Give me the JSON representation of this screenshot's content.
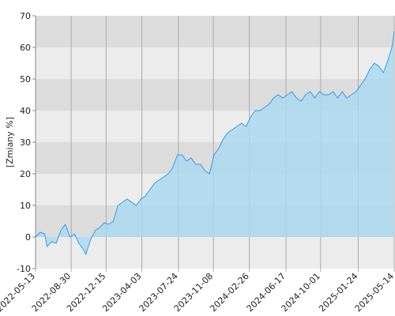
{
  "chart_data": {
    "type": "area",
    "y_label": "[Zmiany %]",
    "color": "#3399ee",
    "fill_color": "#a8d8f0",
    "x": [
      "2022-05-13",
      "2022-05-27",
      "2022-06-10",
      "2022-06-17",
      "2022-07-01",
      "2022-07-15",
      "2022-07-29",
      "2022-08-12",
      "2022-08-26",
      "2022-09-09",
      "2022-09-23",
      "2022-10-07",
      "2022-10-14",
      "2022-10-28",
      "2022-11-11",
      "2022-11-25",
      "2022-12-09",
      "2022-12-23",
      "2023-01-06",
      "2023-01-20",
      "2023-02-03",
      "2023-02-17",
      "2023-03-03",
      "2023-03-17",
      "2023-03-31",
      "2023-04-14",
      "2023-04-28",
      "2023-05-12",
      "2023-05-26",
      "2023-06-09",
      "2023-06-23",
      "2023-07-07",
      "2023-07-21",
      "2023-08-04",
      "2023-08-18",
      "2023-09-01",
      "2023-09-15",
      "2023-09-29",
      "2023-10-13",
      "2023-10-27",
      "2023-11-10",
      "2023-11-24",
      "2023-12-08",
      "2023-12-22",
      "2024-01-05",
      "2024-01-19",
      "2024-02-02",
      "2024-02-16",
      "2024-03-01",
      "2024-03-15",
      "2024-03-29",
      "2024-04-12",
      "2024-04-26",
      "2024-05-10",
      "2024-05-24",
      "2024-06-07",
      "2024-06-21",
      "2024-07-05",
      "2024-07-19",
      "2024-08-02",
      "2024-08-16",
      "2024-08-30",
      "2024-09-13",
      "2024-09-27",
      "2024-10-11",
      "2024-10-25",
      "2024-11-08",
      "2024-11-22",
      "2024-12-06",
      "2024-12-20",
      "2025-01-03",
      "2025-01-17",
      "2025-01-31",
      "2025-02-14",
      "2025-02-28",
      "2025-03-14",
      "2025-03-28",
      "2025-04-11",
      "2025-04-25",
      "2025-05-07",
      "2025-05-14"
    ],
    "values": [
      0,
      1.5,
      1,
      -3,
      -1.5,
      -2,
      2,
      4,
      0,
      1,
      -2,
      -4,
      -5.5,
      -1,
      2,
      3,
      4.5,
      4,
      5,
      10,
      11,
      12,
      11,
      10,
      12,
      13,
      15,
      17,
      18,
      19,
      20,
      22,
      26,
      26,
      24,
      25,
      23,
      23,
      21,
      20,
      26,
      28,
      31,
      33,
      34,
      35,
      36,
      35,
      38,
      40,
      40,
      41,
      42,
      44,
      45,
      44,
      45,
      46,
      44,
      43,
      45,
      46,
      44,
      46,
      45,
      45,
      46,
      44,
      46,
      44,
      45,
      46,
      48,
      50,
      53,
      55,
      54,
      52,
      56,
      60,
      65
    ],
    "xlim": [
      "2022-05-13",
      "2025-05-14"
    ],
    "xticks": [
      "2022-05-13",
      "2022-08-30",
      "2022-12-15",
      "2023-04-03",
      "2023-07-24",
      "2023-11-08",
      "2024-02-26",
      "2024-06-17",
      "2024-10-01",
      "2025-01-24",
      "2025-05-14"
    ],
    "ylim": [
      -10,
      70
    ],
    "yticks": [
      -10,
      0,
      10,
      20,
      30,
      40,
      50,
      60,
      70
    ],
    "grid": true
  }
}
